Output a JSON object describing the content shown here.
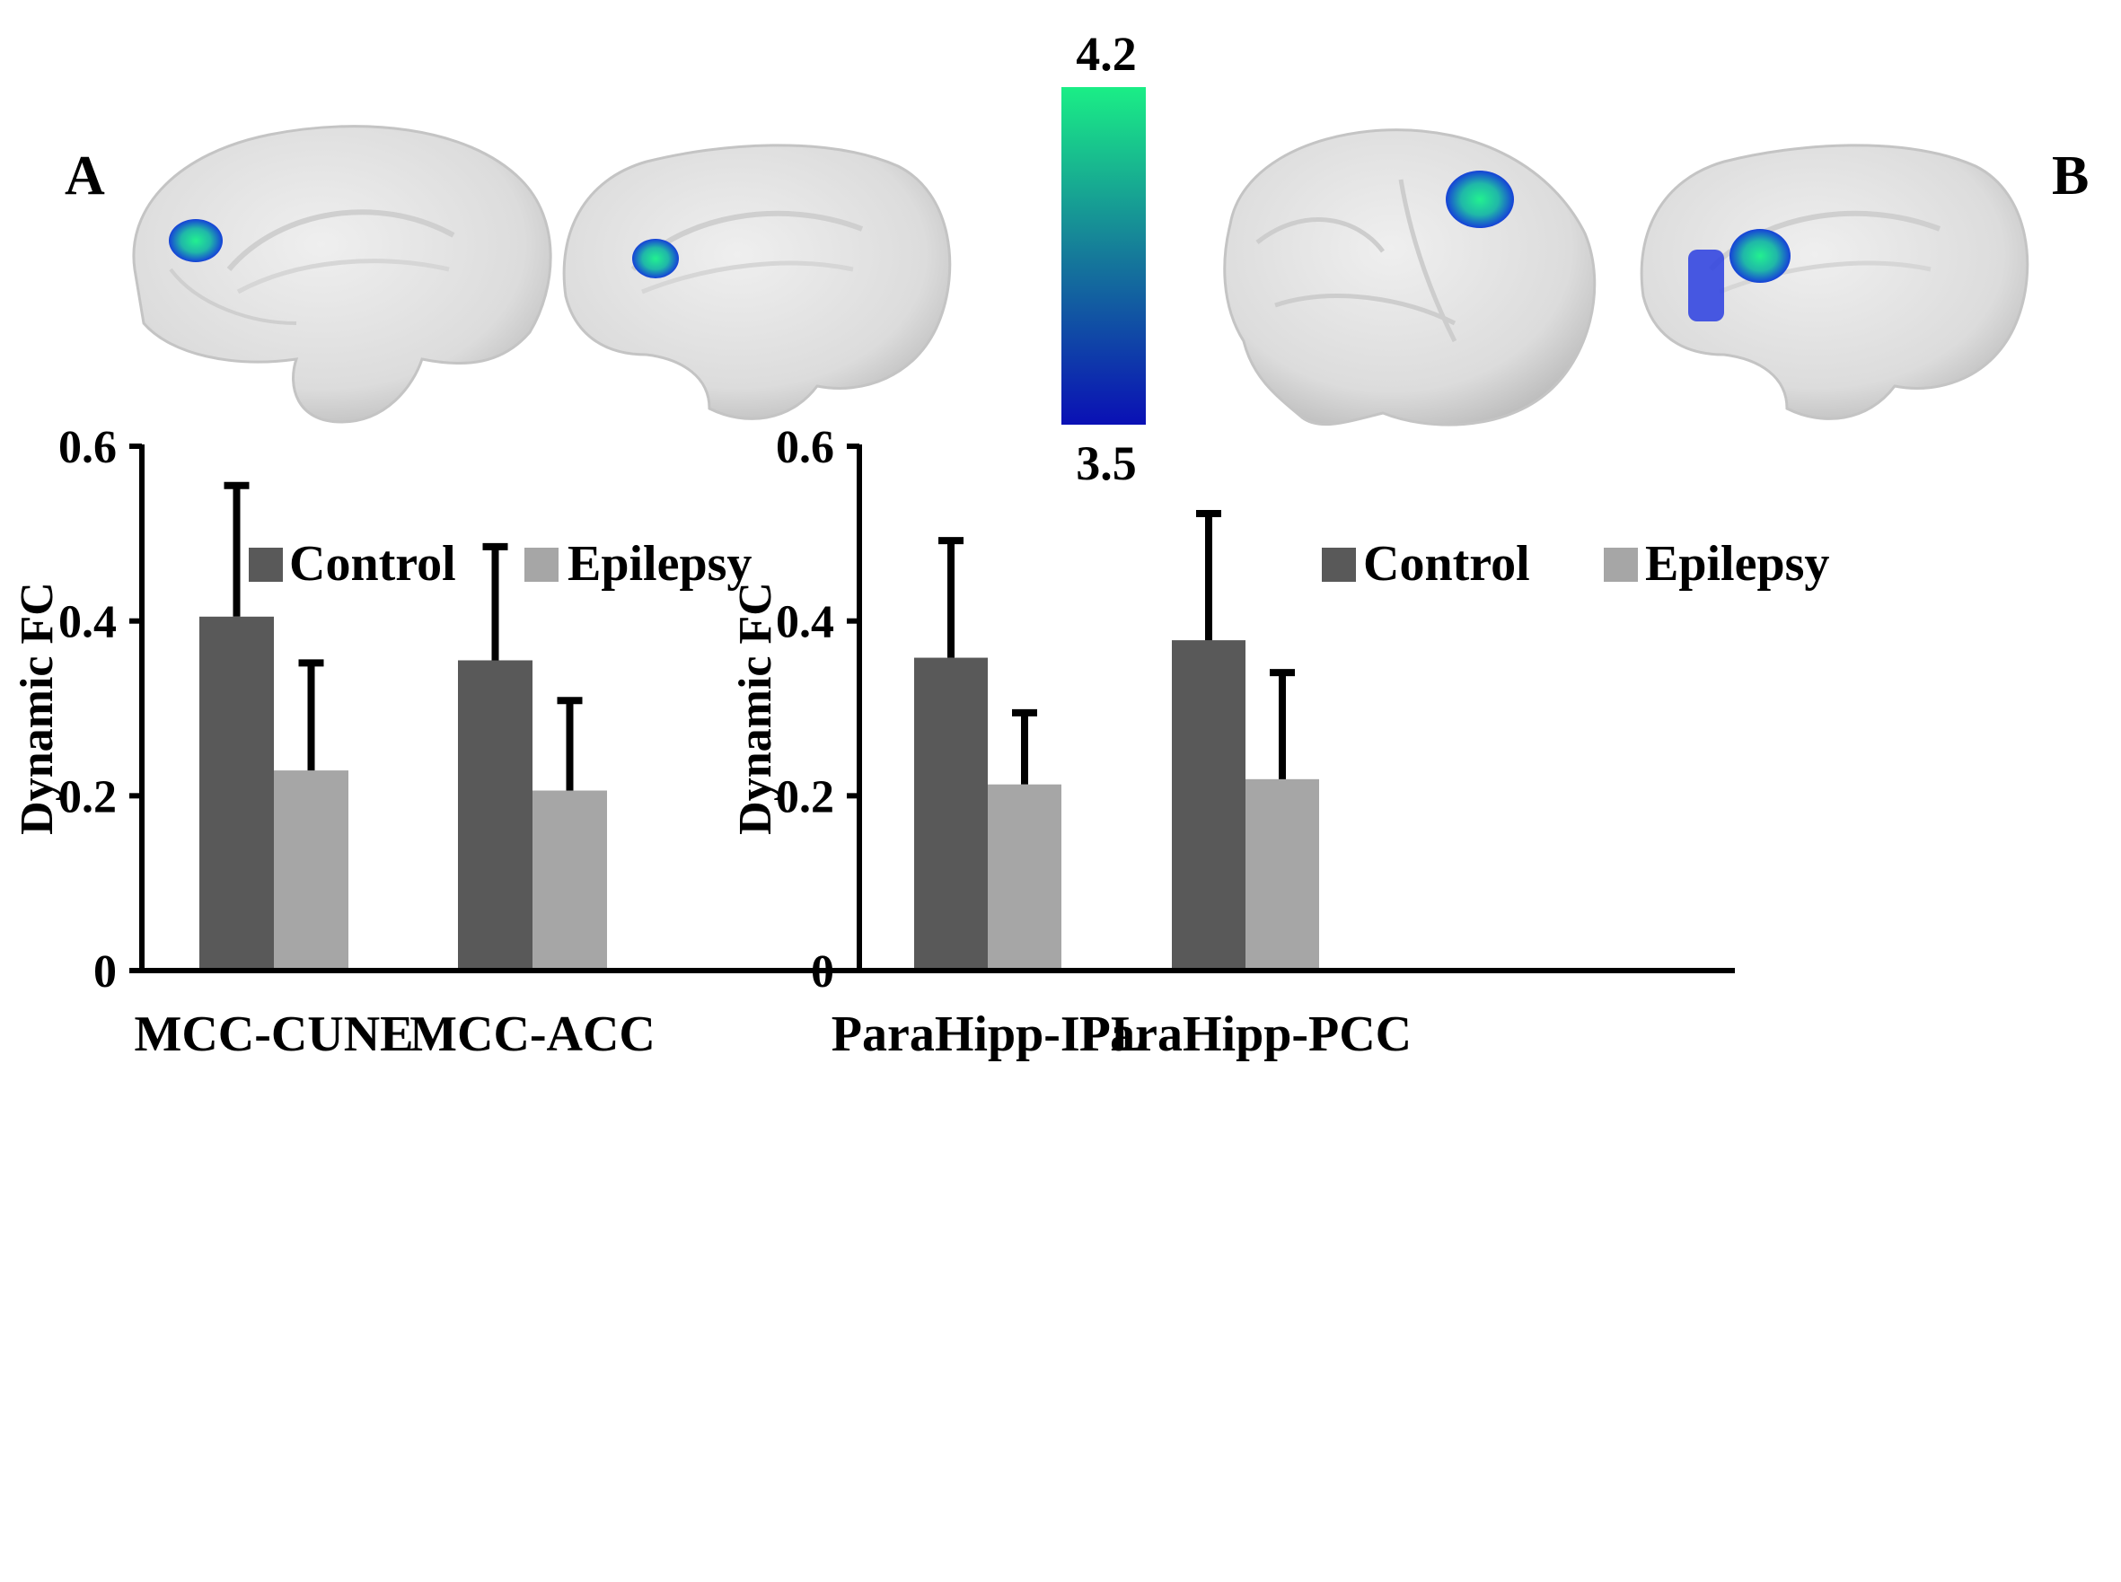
{
  "panels": {
    "a": {
      "letter": "A"
    },
    "b": {
      "letter": "B"
    }
  },
  "colorbar": {
    "max_label": "4.2",
    "min_label": "3.5",
    "max_value": 4.2,
    "min_value": 3.5,
    "colors": {
      "high": "#1aee86",
      "mid": "#157a9a",
      "low": "#0a10b5"
    }
  },
  "legend": {
    "control_label": "Control",
    "epilepsy_label": "Epilepsy",
    "control_color": "#595959",
    "epilepsy_color": "#a6a6a6"
  },
  "chart_data": [
    {
      "type": "bar",
      "panel": "A",
      "categories": [
        "MCC-CUNE",
        "MCC-ACC"
      ],
      "series": [
        {
          "name": "Control",
          "values": [
            0.405,
            0.355
          ],
          "errors": [
            0.15,
            0.13
          ]
        },
        {
          "name": "Epilepsy",
          "values": [
            0.229,
            0.206
          ],
          "errors": [
            0.123,
            0.103
          ]
        }
      ],
      "ylabel": "Dynamic FC",
      "xlabel": "",
      "ylim": [
        0,
        0.6
      ],
      "yticks": [
        0,
        0.2,
        0.4,
        0.6
      ],
      "ytick_labels": [
        "0",
        "0.2",
        "0.4",
        "0.6"
      ],
      "legend_position": "top-left"
    },
    {
      "type": "bar",
      "panel": "B",
      "categories": [
        "ParaHipp-IPL",
        "ParaHipp-PCC"
      ],
      "series": [
        {
          "name": "Control",
          "values": [
            0.358,
            0.378
          ],
          "errors": [
            0.134,
            0.145
          ]
        },
        {
          "name": "Epilepsy",
          "values": [
            0.213,
            0.219
          ],
          "errors": [
            0.082,
            0.122
          ]
        }
      ],
      "ylabel": "Dynamic FC",
      "xlabel": "",
      "ylim": [
        0,
        0.6
      ],
      "yticks": [
        0,
        0.2,
        0.4,
        0.6
      ],
      "ytick_labels": [
        "0",
        "0.2",
        "0.4",
        "0.6"
      ],
      "legend_position": "top-left"
    }
  ]
}
